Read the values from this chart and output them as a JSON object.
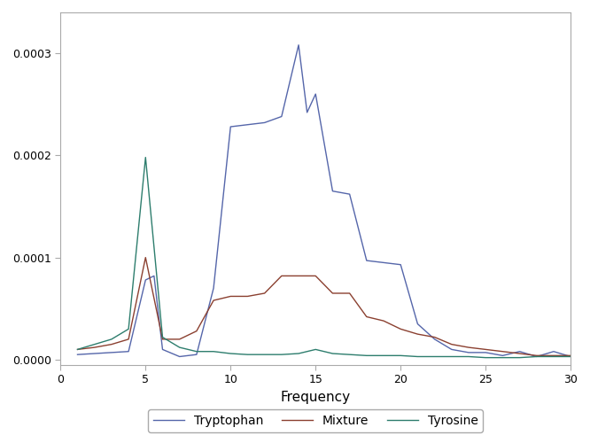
{
  "xlabel": "Frequency",
  "xlim": [
    0,
    30
  ],
  "ylim": [
    -5e-06,
    0.00034
  ],
  "xticks": [
    0,
    5,
    10,
    15,
    20,
    25,
    30
  ],
  "yticks": [
    0.0,
    0.0001,
    0.0002,
    0.0003
  ],
  "background_color": "#ffffff",
  "tryptophan_color": "#5566aa",
  "mixture_color": "#8b4030",
  "tyrosine_color": "#2d7d6d",
  "tryptophan_x": [
    1,
    2,
    3,
    4,
    5,
    5.5,
    6,
    7,
    8,
    9,
    10,
    11,
    12,
    13,
    14,
    14.5,
    15,
    16,
    17,
    18,
    19,
    20,
    21,
    22,
    23,
    24,
    25,
    26,
    27,
    28,
    29,
    30
  ],
  "tryptophan_y": [
    5e-06,
    6e-06,
    7e-06,
    8e-06,
    7.8e-05,
    8.2e-05,
    1e-05,
    3e-06,
    5e-06,
    7e-05,
    0.000228,
    0.00023,
    0.000232,
    0.000238,
    0.000308,
    0.000242,
    0.00026,
    0.000165,
    0.000162,
    9.7e-05,
    9.5e-05,
    9.3e-05,
    3.5e-05,
    2e-05,
    1e-05,
    7e-06,
    7e-06,
    4e-06,
    8e-06,
    3e-06,
    8e-06,
    3e-06
  ],
  "mixture_x": [
    1,
    2,
    3,
    4,
    5,
    6,
    7,
    8,
    9,
    10,
    11,
    12,
    13,
    14,
    15,
    16,
    17,
    18,
    19,
    20,
    21,
    22,
    23,
    24,
    25,
    26,
    27,
    28,
    29,
    30
  ],
  "mixture_y": [
    1e-05,
    1.2e-05,
    1.5e-05,
    2e-05,
    0.0001,
    2e-05,
    2e-05,
    2.8e-05,
    5.8e-05,
    6.2e-05,
    6.2e-05,
    6.5e-05,
    8.2e-05,
    8.2e-05,
    8.2e-05,
    6.5e-05,
    6.5e-05,
    4.2e-05,
    3.8e-05,
    3e-05,
    2.5e-05,
    2.2e-05,
    1.5e-05,
    1.2e-05,
    1e-05,
    8e-06,
    6e-06,
    4e-06,
    4e-06,
    4e-06
  ],
  "tyrosine_x": [
    1,
    2,
    3,
    4,
    5,
    6,
    7,
    8,
    9,
    10,
    11,
    12,
    13,
    14,
    15,
    16,
    17,
    18,
    19,
    20,
    21,
    22,
    23,
    24,
    25,
    26,
    27,
    28,
    29,
    30
  ],
  "tyrosine_y": [
    1e-05,
    1.5e-05,
    2e-05,
    3e-05,
    0.000198,
    2.2e-05,
    1.2e-05,
    8e-06,
    8e-06,
    6e-06,
    5e-06,
    5e-06,
    5e-06,
    6e-06,
    1e-05,
    6e-06,
    5e-06,
    4e-06,
    4e-06,
    4e-06,
    3e-06,
    3e-06,
    3e-06,
    3e-06,
    2e-06,
    2e-06,
    2e-06,
    3e-06,
    3e-06,
    3e-06
  ],
  "legend_labels": [
    "Tryptophan",
    "Mixture",
    "Tyrosine"
  ],
  "linewidth": 1.0,
  "spine_color": "#aaaaaa",
  "tick_labelsize": 9,
  "xlabel_fontsize": 11
}
